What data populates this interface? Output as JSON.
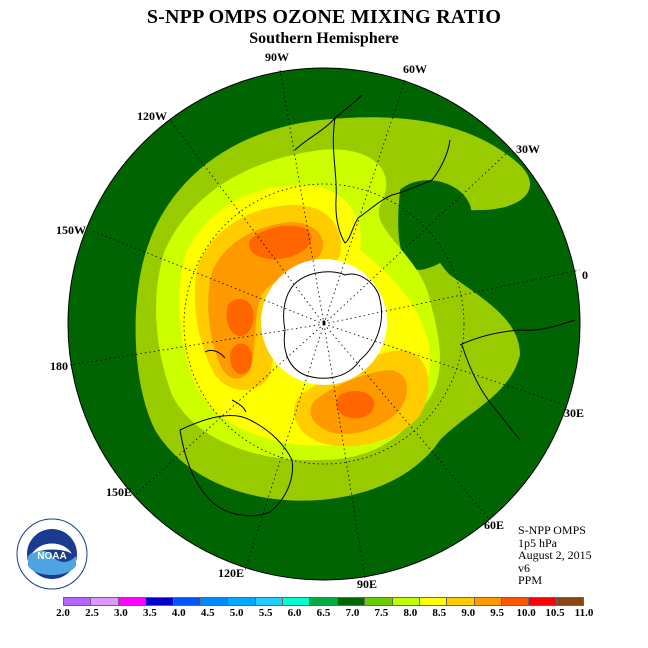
{
  "header": {
    "title": "S-NPP OMPS OZONE MIXING RATIO",
    "subtitle": "Southern Hemisphere"
  },
  "map": {
    "projection": "south polar stereographic",
    "center": "South Pole",
    "no_data_region": "polar night (white)",
    "longitude_labels": {
      "lon_0": "0",
      "lon_30w": "30W",
      "lon_60w": "60W",
      "lon_90w": "90W",
      "lon_120w": "120W",
      "lon_150w": "150W",
      "lon_180": "180",
      "lon_150e": "150E",
      "lon_120e": "120E",
      "lon_90e": "90E",
      "lon_60e": "60E",
      "lon_30e": "30E"
    },
    "colors": {
      "outer_background": "#006400",
      "dark_green": "#006400",
      "yellow_green": "#99cc00",
      "lime": "#ccff00",
      "yellow": "#ffff00",
      "gold": "#ffcc00",
      "orange": "#ff9900",
      "orange_red": "#ff6600",
      "no_data": "#ffffff"
    }
  },
  "info": {
    "line1": "S-NPP OMPS",
    "line2": "1p5 hPa",
    "line3": "August 2, 2015",
    "line4": "v6",
    "line5": "PPM"
  },
  "logo": {
    "text": "NOAA",
    "ring_text": "NATIONAL OCEANIC AND ATMOSPHERIC ADMINISTRATION",
    "ring_text_bottom": "U.S. DEPARTMENT OF COMMERCE",
    "icon": "noaa-logo-icon"
  },
  "colorbar": {
    "unit": "PPM",
    "ticks": [
      "2.0",
      "2.5",
      "3.0",
      "3.5",
      "4.0",
      "4.5",
      "5.0",
      "5.5",
      "6.0",
      "6.5",
      "7.0",
      "7.5",
      "8.0",
      "8.5",
      "9.0",
      "9.5",
      "10.0",
      "10.5",
      "11.0"
    ],
    "colors": [
      "#b266ff",
      "#dd99ff",
      "#ff00ff",
      "#0000cc",
      "#0055ff",
      "#0088ff",
      "#00aaff",
      "#22ccff",
      "#00ffcc",
      "#00aa44",
      "#006600",
      "#66cc00",
      "#bbff00",
      "#ffff00",
      "#ffcc00",
      "#ff9900",
      "#ff5500",
      "#ff0000",
      "#8b4513"
    ]
  }
}
